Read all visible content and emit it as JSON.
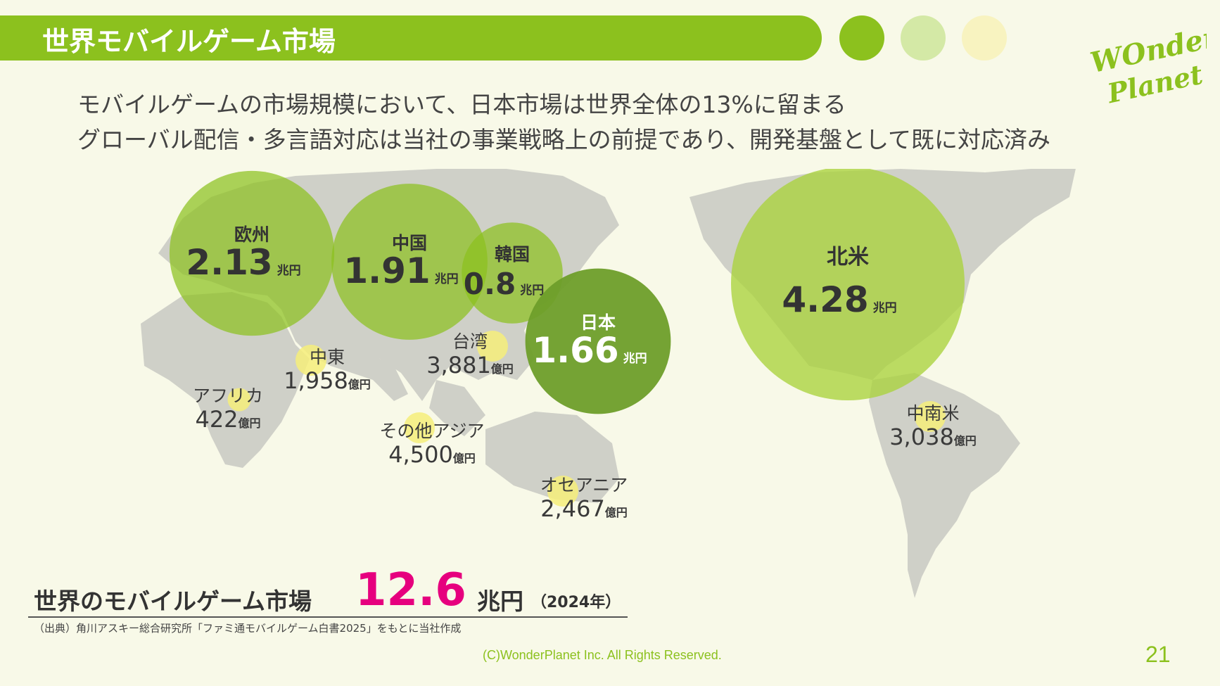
{
  "header": {
    "title": "世界モバイルゲーム市場"
  },
  "logo": {
    "text_line1": "WOnder",
    "text_line2": "Planet"
  },
  "colors": {
    "accent": "#8cc11e",
    "dot2": "#d4e9a6",
    "dot3": "#f8f3c0",
    "highlight": "#e6007e"
  },
  "subtitles": [
    "モバイルゲームの市場規模において、日本市場は世界全体の13%に留まる",
    "グローバル配信・多言語対応は当社の事業戦略上の前提であり、開発基盤として既に対応済み"
  ],
  "chart_data": {
    "type": "bubble-map",
    "title": "",
    "series": [
      {
        "region": "欧州",
        "value": "2.13",
        "unit": "兆円",
        "amount_oku": 21300
      },
      {
        "region": "中国",
        "value": "1.91",
        "unit": "兆円",
        "amount_oku": 19100
      },
      {
        "region": "韓国",
        "value": "0.8",
        "unit": "兆円",
        "amount_oku": 8000
      },
      {
        "region": "日本",
        "value": "1.66",
        "unit": "兆円",
        "amount_oku": 16600
      },
      {
        "region": "北米",
        "value": "4.28",
        "unit": "兆円",
        "amount_oku": 42800
      },
      {
        "region": "台湾",
        "value": "3,881",
        "unit": "億円",
        "amount_oku": 3881
      },
      {
        "region": "中東",
        "value": "1,958",
        "unit": "億円",
        "amount_oku": 1958
      },
      {
        "region": "アフリカ",
        "value": "422",
        "unit": "億円",
        "amount_oku": 422
      },
      {
        "region": "その他アジア",
        "value": "4,500",
        "unit": "億円",
        "amount_oku": 4500
      },
      {
        "region": "オセアニア",
        "value": "2,467",
        "unit": "億円",
        "amount_oku": 2467
      },
      {
        "region": "中南米",
        "value": "3,038",
        "unit": "億円",
        "amount_oku": 3038
      }
    ]
  },
  "total": {
    "label": "世界のモバイルゲーム市場",
    "value": "12.6",
    "unit": "兆円",
    "year": "（2024年）"
  },
  "source": "（出典）角川アスキー総合研究所「ファミ通モバイルゲーム白書2025」をもとに当社作成",
  "footer": {
    "copyright": "(C)WonderPlanet Inc.  All Rights Reserved.",
    "page": "21"
  }
}
